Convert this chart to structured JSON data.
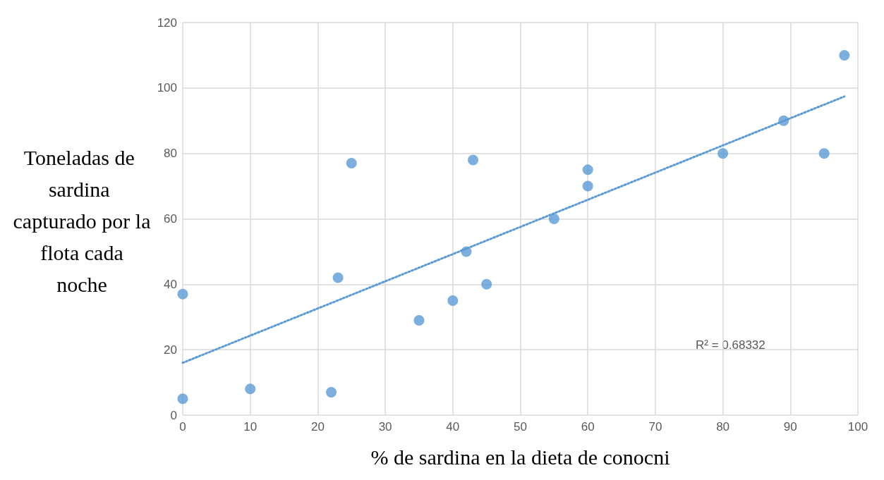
{
  "chart_data": {
    "type": "scatter",
    "xlabel": "% de sardina en la dieta de conocni",
    "ylabel": "Toneladas de sardina capturado por la flota cada noche",
    "series": [
      {
        "color": "#5b9bd5",
        "marker": "circle",
        "x": [
          0,
          0,
          10,
          22,
          23,
          25,
          35,
          40,
          42,
          43,
          45,
          55,
          60,
          60,
          80,
          89,
          95,
          98
        ],
        "values": [
          5,
          37,
          8,
          7,
          42,
          77,
          29,
          35,
          50,
          78,
          40,
          60,
          75,
          70,
          80,
          90,
          80,
          110
        ]
      },
      {
        "type": "line",
        "color": "#5b9bd5",
        "line_style": "dotted",
        "x": [
          0,
          98
        ],
        "values": [
          16,
          97.4
        ]
      }
    ],
    "annotations": [
      "R² = 0.68332"
    ],
    "xlim": [
      0,
      100
    ],
    "xticks": [
      0,
      10,
      20,
      30,
      40,
      50,
      60,
      70,
      80,
      90,
      100
    ],
    "ylim": [
      0,
      120
    ],
    "yticks": [
      0,
      20,
      40,
      60,
      80,
      100,
      120
    ],
    "grid": true
  }
}
